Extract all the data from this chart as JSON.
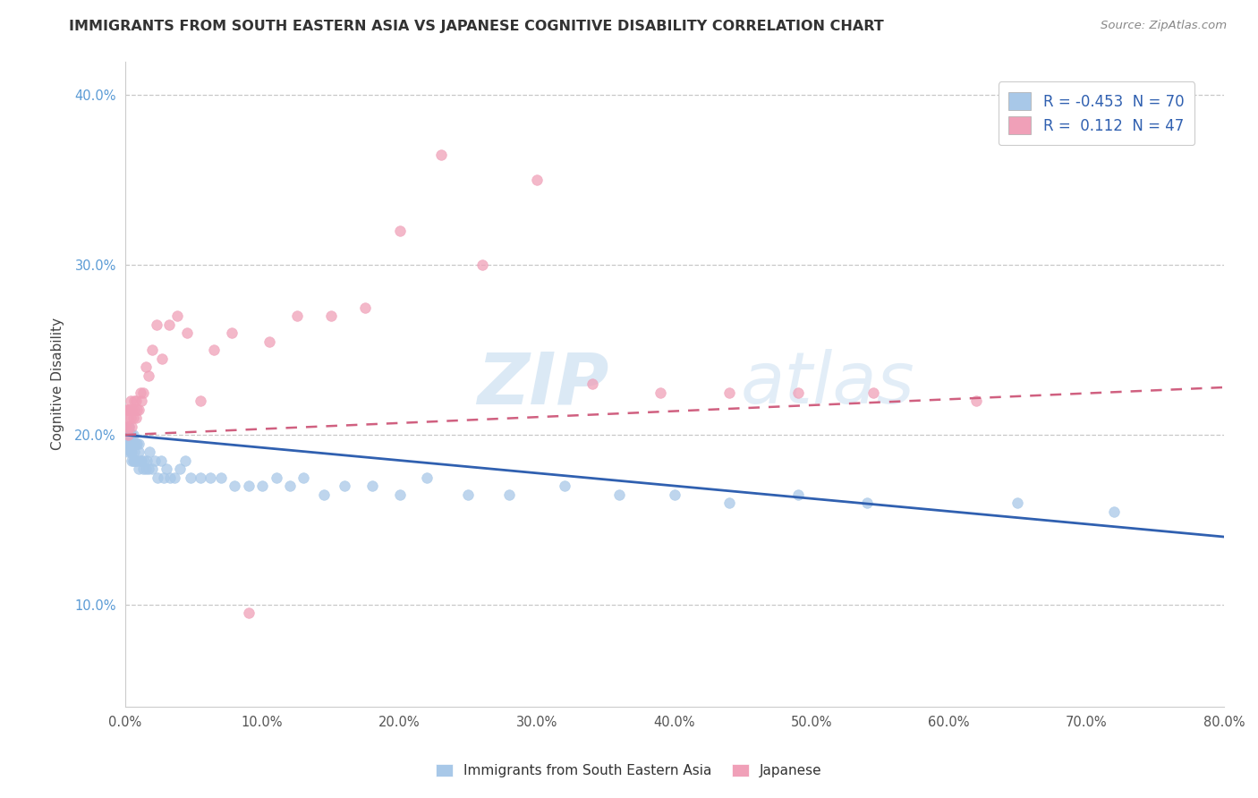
{
  "title": "IMMIGRANTS FROM SOUTH EASTERN ASIA VS JAPANESE COGNITIVE DISABILITY CORRELATION CHART",
  "source_text": "Source: ZipAtlas.com",
  "xlabel_blue": "Immigrants from South Eastern Asia",
  "xlabel_pink": "Japanese",
  "ylabel": "Cognitive Disability",
  "watermark_zip": "ZIP",
  "watermark_atlas": "atlas",
  "blue_R": -0.453,
  "blue_N": 70,
  "pink_R": 0.112,
  "pink_N": 47,
  "xlim": [
    0.0,
    0.8
  ],
  "ylim": [
    0.04,
    0.42
  ],
  "xticks": [
    0.0,
    0.1,
    0.2,
    0.3,
    0.4,
    0.5,
    0.6,
    0.7,
    0.8
  ],
  "yticks": [
    0.1,
    0.2,
    0.3,
    0.4
  ],
  "blue_color": "#a8c8e8",
  "pink_color": "#f0a0b8",
  "blue_line_color": "#3060b0",
  "pink_line_color": "#d06080",
  "background_color": "#ffffff",
  "grid_color": "#c8c8c8",
  "blue_intercept": 0.2,
  "blue_slope": -0.075,
  "pink_intercept": 0.2,
  "pink_slope": 0.035,
  "blue_x": [
    0.001,
    0.001,
    0.002,
    0.002,
    0.002,
    0.003,
    0.003,
    0.003,
    0.004,
    0.004,
    0.004,
    0.005,
    0.005,
    0.005,
    0.005,
    0.006,
    0.006,
    0.006,
    0.007,
    0.007,
    0.008,
    0.008,
    0.009,
    0.009,
    0.01,
    0.01,
    0.01,
    0.011,
    0.012,
    0.013,
    0.014,
    0.015,
    0.016,
    0.017,
    0.018,
    0.02,
    0.022,
    0.024,
    0.026,
    0.028,
    0.03,
    0.033,
    0.036,
    0.04,
    0.044,
    0.048,
    0.055,
    0.062,
    0.07,
    0.08,
    0.09,
    0.1,
    0.11,
    0.12,
    0.13,
    0.145,
    0.16,
    0.18,
    0.2,
    0.22,
    0.25,
    0.28,
    0.32,
    0.36,
    0.4,
    0.44,
    0.49,
    0.54,
    0.65,
    0.72
  ],
  "blue_y": [
    0.2,
    0.195,
    0.19,
    0.205,
    0.195,
    0.2,
    0.195,
    0.205,
    0.19,
    0.2,
    0.195,
    0.185,
    0.195,
    0.2,
    0.19,
    0.185,
    0.195,
    0.2,
    0.19,
    0.185,
    0.185,
    0.195,
    0.185,
    0.195,
    0.18,
    0.19,
    0.195,
    0.185,
    0.185,
    0.18,
    0.185,
    0.18,
    0.185,
    0.18,
    0.19,
    0.18,
    0.185,
    0.175,
    0.185,
    0.175,
    0.18,
    0.175,
    0.175,
    0.18,
    0.185,
    0.175,
    0.175,
    0.175,
    0.175,
    0.17,
    0.17,
    0.17,
    0.175,
    0.17,
    0.175,
    0.165,
    0.17,
    0.17,
    0.165,
    0.175,
    0.165,
    0.165,
    0.17,
    0.165,
    0.165,
    0.16,
    0.165,
    0.16,
    0.16,
    0.155
  ],
  "pink_x": [
    0.001,
    0.001,
    0.002,
    0.002,
    0.002,
    0.003,
    0.003,
    0.004,
    0.004,
    0.005,
    0.005,
    0.006,
    0.007,
    0.007,
    0.008,
    0.008,
    0.009,
    0.01,
    0.011,
    0.012,
    0.013,
    0.015,
    0.017,
    0.02,
    0.023,
    0.027,
    0.032,
    0.038,
    0.045,
    0.055,
    0.065,
    0.078,
    0.09,
    0.105,
    0.125,
    0.15,
    0.175,
    0.2,
    0.23,
    0.26,
    0.3,
    0.34,
    0.39,
    0.44,
    0.49,
    0.545,
    0.62
  ],
  "pink_y": [
    0.205,
    0.215,
    0.21,
    0.2,
    0.215,
    0.205,
    0.215,
    0.21,
    0.22,
    0.205,
    0.215,
    0.21,
    0.22,
    0.215,
    0.21,
    0.22,
    0.215,
    0.215,
    0.225,
    0.22,
    0.225,
    0.24,
    0.235,
    0.25,
    0.265,
    0.245,
    0.265,
    0.27,
    0.26,
    0.22,
    0.25,
    0.26,
    0.095,
    0.255,
    0.27,
    0.27,
    0.275,
    0.32,
    0.365,
    0.3,
    0.35,
    0.23,
    0.225,
    0.225,
    0.225,
    0.225,
    0.22
  ]
}
